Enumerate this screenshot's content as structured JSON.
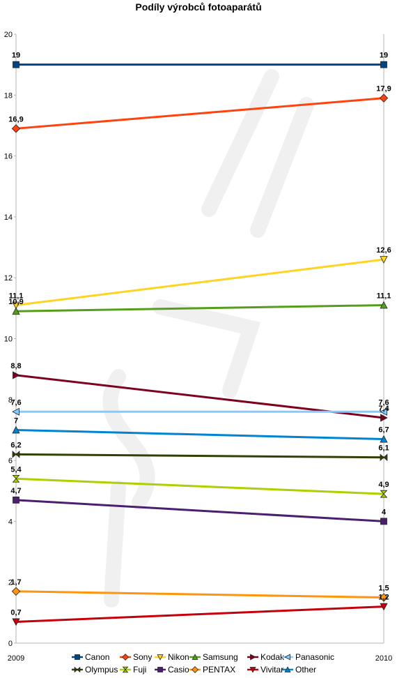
{
  "chart_data": {
    "type": "line",
    "title": "Podíly výrobců fotoaparátů",
    "xlabel": "",
    "ylabel": "",
    "categories": [
      "2009",
      "2010"
    ],
    "ylim": [
      0,
      20
    ],
    "yticks": [
      0,
      2,
      4,
      6,
      8,
      10,
      12,
      14,
      16,
      18,
      20
    ],
    "grid": false,
    "legend": "bottom",
    "series": [
      {
        "name": "Canon",
        "values": [
          19,
          19
        ],
        "labels": [
          "19",
          "19"
        ],
        "color": "#004586",
        "marker": "square"
      },
      {
        "name": "Sony",
        "values": [
          16.9,
          17.9
        ],
        "labels": [
          "16,9",
          "17,9"
        ],
        "color": "#ff420e",
        "marker": "diamond"
      },
      {
        "name": "Nikon",
        "values": [
          11.1,
          12.6
        ],
        "labels": [
          "11,1",
          "12,6"
        ],
        "color": "#ffd320",
        "marker": "tri-down"
      },
      {
        "name": "Samsung",
        "values": [
          10.9,
          11.1
        ],
        "labels": [
          "10,9",
          "11,1"
        ],
        "color": "#579d1c",
        "marker": "tri-up"
      },
      {
        "name": "Kodak",
        "values": [
          8.8,
          7.4
        ],
        "labels": [
          "8,8",
          "7,4"
        ],
        "color": "#7e0021",
        "marker": "tri-right"
      },
      {
        "name": "Panasonic",
        "values": [
          7.6,
          7.6
        ],
        "labels": [
          "7,6",
          "7,6"
        ],
        "color": "#83caff",
        "marker": "tri-left"
      },
      {
        "name": "Olympus",
        "values": [
          6.2,
          6.1
        ],
        "labels": [
          "6,2",
          "6,1"
        ],
        "color": "#314004",
        "marker": "bowtie-h"
      },
      {
        "name": "Fuji",
        "values": [
          5.4,
          4.9
        ],
        "labels": [
          "5,4",
          "4,9"
        ],
        "color": "#aecf00",
        "marker": "bowtie-v"
      },
      {
        "name": "Casio",
        "values": [
          4.7,
          4
        ],
        "labels": [
          "4,7",
          "4"
        ],
        "color": "#4b1f6f",
        "marker": "square"
      },
      {
        "name": "PENTAX",
        "values": [
          1.7,
          1.5
        ],
        "labels": [
          "1,7",
          "1,5"
        ],
        "color": "#ff950e",
        "marker": "diamond"
      },
      {
        "name": "Vivitar",
        "values": [
          0.7,
          1.2
        ],
        "labels": [
          "0,7",
          "1,2"
        ],
        "color": "#c5000b",
        "marker": "tri-down"
      },
      {
        "name": "Other",
        "values": [
          7,
          6.7
        ],
        "labels": [
          "7",
          "6,7"
        ],
        "color": "#0084d1",
        "marker": "tri-up"
      }
    ]
  }
}
